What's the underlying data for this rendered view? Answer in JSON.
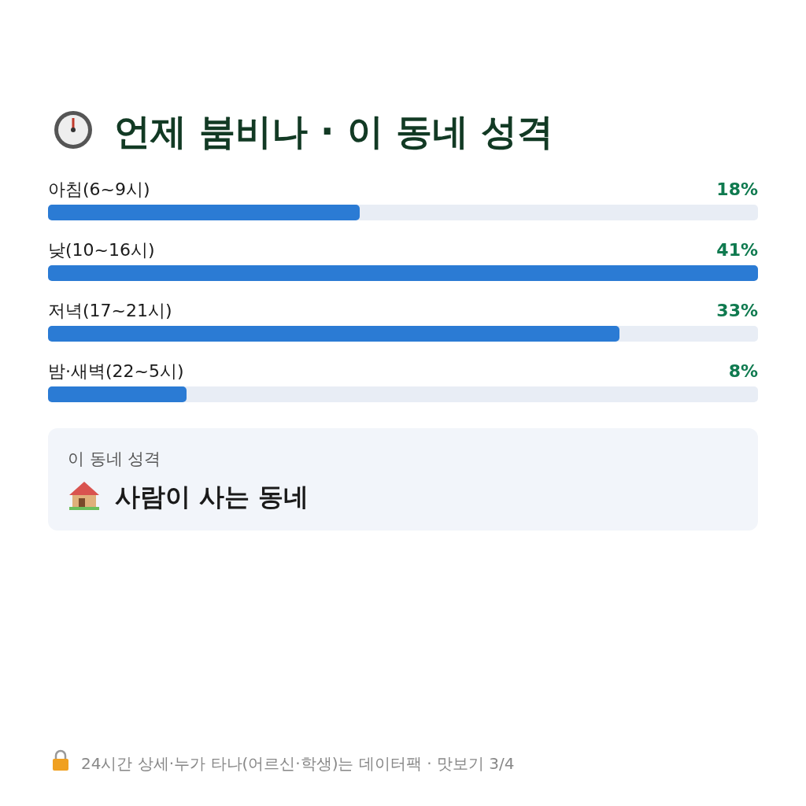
{
  "chart_data": {
    "type": "bar",
    "orientation": "horizontal",
    "title": "언제 붐비나 · 이 동네 성격",
    "categories": [
      "아침(6~9시)",
      "낮(10~16시)",
      "저녁(17~21시)",
      "밤·새벽(22~5시)"
    ],
    "values": [
      18,
      41,
      33,
      8
    ],
    "value_labels": [
      "18%",
      "41%",
      "33%",
      "8%"
    ],
    "color": "#2b7bd4",
    "xlim": [
      0,
      41
    ],
    "annotations": [
      "이 동네 성격",
      "사람이 사는 동네",
      "24시간 상세·누가 타나(어르신·학생)는 데이터팩 · 맛보기 3/4"
    ]
  }
}
